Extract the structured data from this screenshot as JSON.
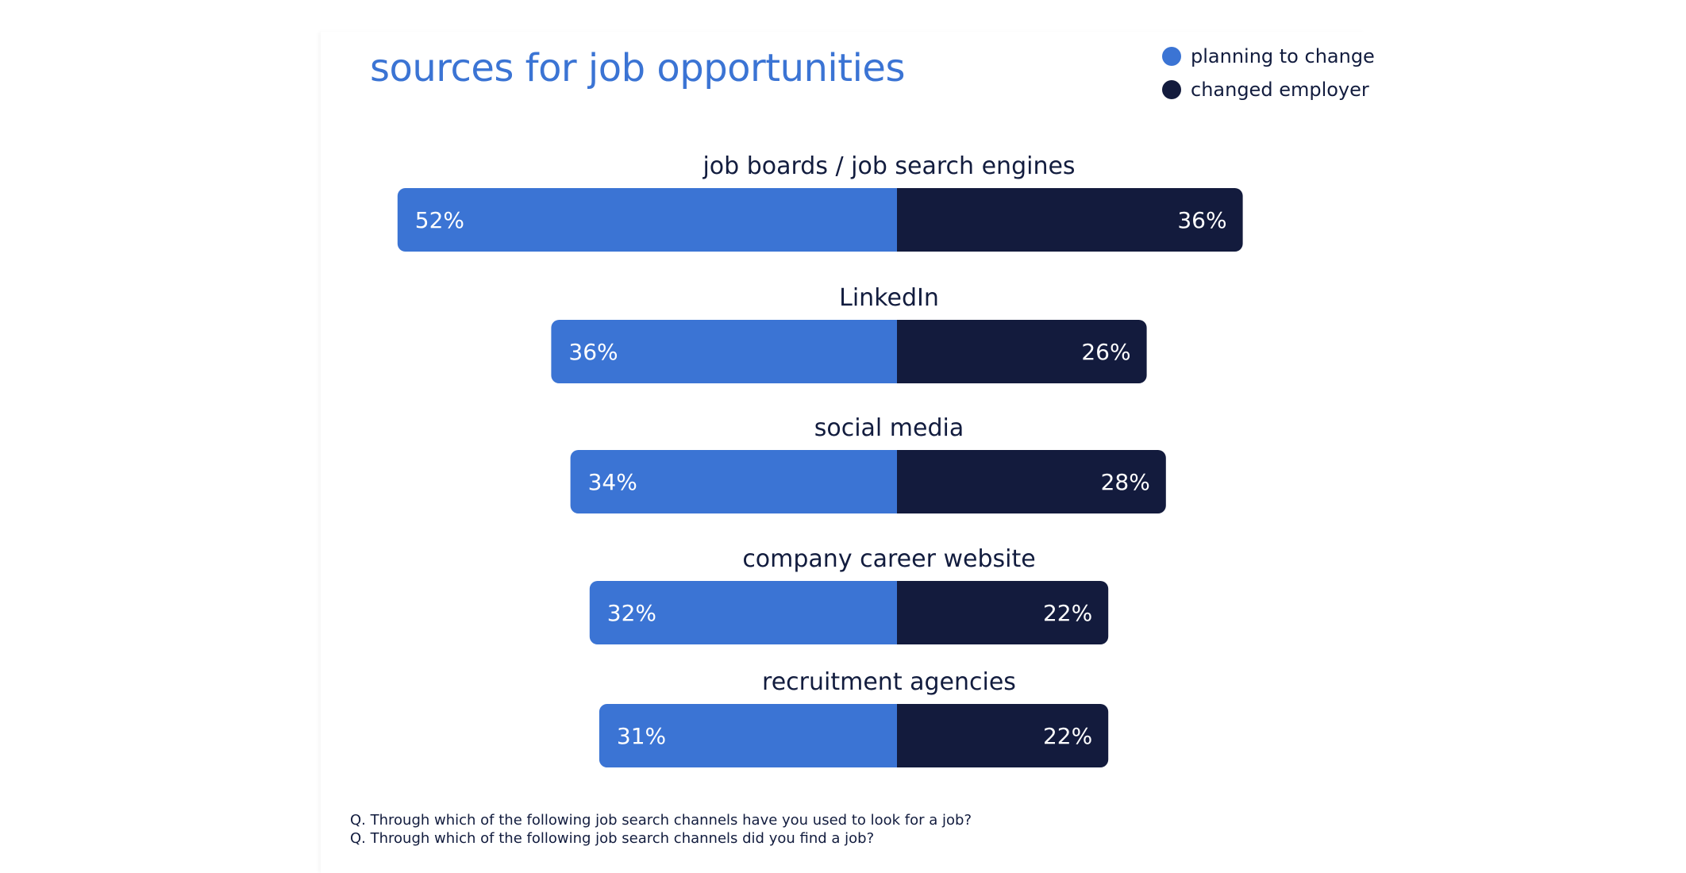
{
  "colors": {
    "planning": "#3b74d4",
    "changed": "#131b3d",
    "title": "#3b74d4",
    "text": "#121c3e",
    "bar_label": "#ffffff"
  },
  "chart_data": {
    "type": "bar",
    "orientation": "horizontal-diverging",
    "title": "sources for job opportunities",
    "legend_position": "top-right",
    "categories": [
      "job boards / job search engines",
      "LinkedIn",
      "social media",
      "company career website",
      "recruitment agencies"
    ],
    "series": [
      {
        "name": "planning to change",
        "values": [
          52,
          36,
          34,
          32,
          31
        ],
        "labels": [
          "52%",
          "36%",
          "34%",
          "32%",
          "31%"
        ]
      },
      {
        "name": "changed employer",
        "values": [
          36,
          26,
          28,
          22,
          22
        ],
        "labels": [
          "36%",
          "26%",
          "28%",
          "22%",
          "22%"
        ]
      }
    ],
    "unit": "%",
    "grid": false
  },
  "footnotes": [
    "Q. Through which of the following job search channels have you used to look for a job?",
    "Q. Through which of the following job search channels did you find a job?"
  ]
}
